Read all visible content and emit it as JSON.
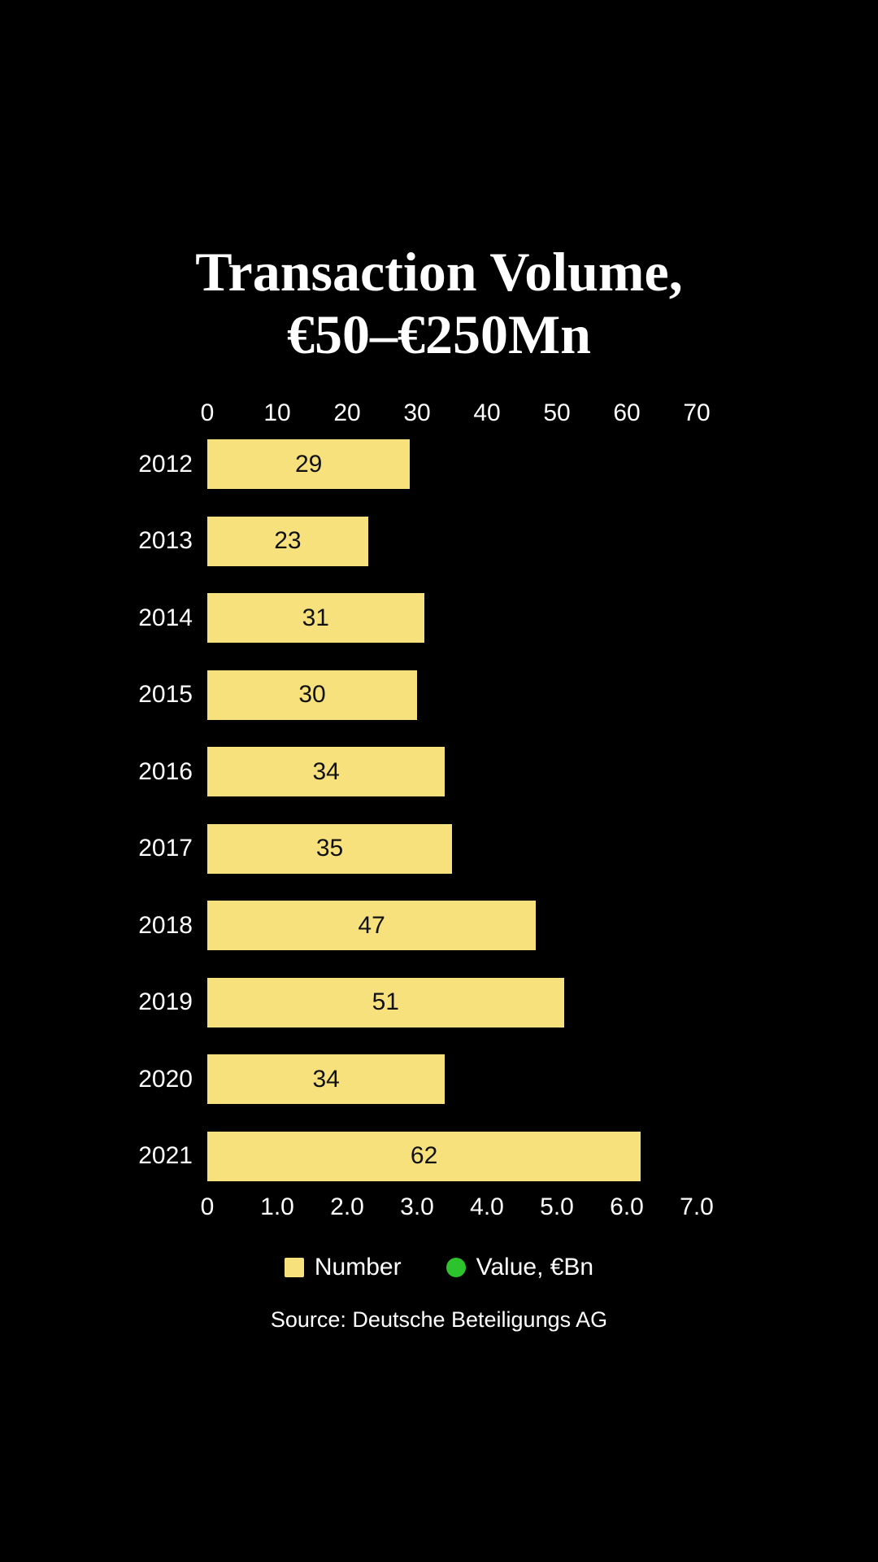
{
  "title": {
    "line1": "Transaction Volume,",
    "line2": "€50–€250Mn"
  },
  "source": "Source: Deutsche Beteiligungs AG",
  "legend": [
    {
      "label": "Number",
      "marker": "square-icon",
      "color": "#F7E17D"
    },
    {
      "label": "Value, €Bn",
      "marker": "circle-icon",
      "color": "#2DC32D"
    }
  ],
  "colors": {
    "background": "#000000",
    "bar": "#F7E17D",
    "bar_label": "#111111",
    "text": "#FFFFFF",
    "value_marker_green": "#2DC32D"
  },
  "chart_data": {
    "type": "bar",
    "orientation": "horizontal",
    "title": "Transaction Volume, €50–€250Mn",
    "categories": [
      "2012",
      "2013",
      "2014",
      "2015",
      "2016",
      "2017",
      "2018",
      "2019",
      "2020",
      "2021"
    ],
    "series": [
      {
        "name": "Number",
        "values": [
          29,
          23,
          31,
          30,
          34,
          35,
          47,
          51,
          34,
          62
        ]
      }
    ],
    "bar_labels": [
      "29",
      "23",
      "31",
      "30",
      "34",
      "35",
      "47",
      "51",
      "34",
      "62"
    ],
    "axes": {
      "top": {
        "label": "Number",
        "ticks": [
          "0",
          "10",
          "20",
          "30",
          "40",
          "50",
          "60",
          "70"
        ],
        "range": [
          0,
          70
        ]
      },
      "bottom": {
        "label": "Value, €Bn",
        "ticks": [
          "0",
          "1.0",
          "2.0",
          "3.0",
          "4.0",
          "5.0",
          "6.0",
          "7.0"
        ],
        "range": [
          0,
          7.0
        ]
      }
    },
    "grid": false,
    "legend_position": "bottom",
    "note": "No green Value dots are visible in the plot area; legend entry only."
  }
}
